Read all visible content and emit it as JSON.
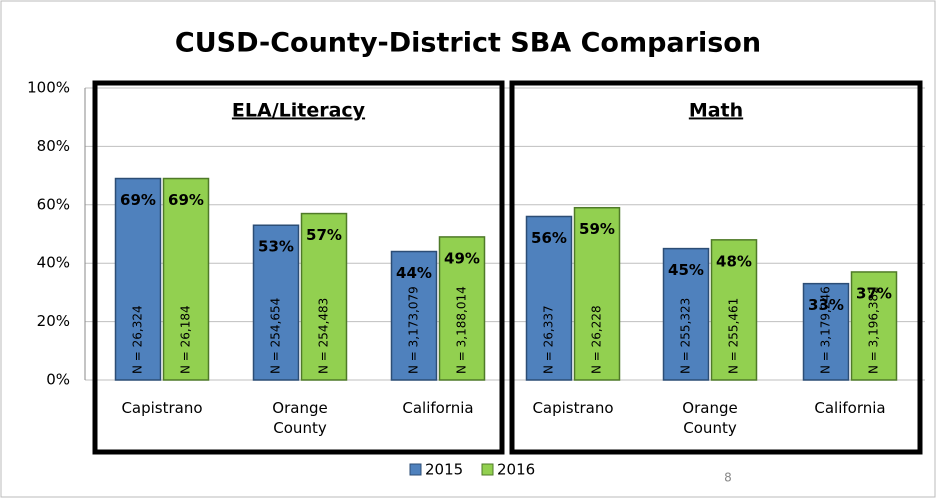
{
  "chart_data": {
    "type": "bar",
    "title": "CUSD-County-District SBA Comparison",
    "groups": [
      "ELA/Literacy",
      "Math"
    ],
    "categories": [
      "Capistrano",
      "Orange County",
      "California",
      "Capistrano",
      "Orange County",
      "California"
    ],
    "series": [
      {
        "name": "2015",
        "color": "#4f81bd",
        "values": [
          69,
          53,
          44,
          56,
          45,
          33
        ],
        "value_labels": [
          "69%",
          "53%",
          "44%",
          "56%",
          "45%",
          "33%"
        ],
        "n_labels": [
          "N = 26,324",
          "N = 254,654",
          "N = 3,173,079",
          "N = 26,337",
          "N = 255,323",
          "N = 3,179,246"
        ]
      },
      {
        "name": "2016",
        "color": "#92d050",
        "values": [
          69,
          57,
          49,
          59,
          48,
          37
        ],
        "value_labels": [
          "69%",
          "57%",
          "49%",
          "59%",
          "48%",
          "37%"
        ],
        "n_labels": [
          "N = 26,184",
          "N = 254,483",
          "N = 3,188,014",
          "N = 26,228",
          "N = 255,461",
          "N = 3,196,382"
        ]
      }
    ],
    "ylim": [
      0,
      100
    ],
    "yticks": [
      {
        "value": 0,
        "label": "0%"
      },
      {
        "value": 20,
        "label": "20%"
      },
      {
        "value": 40,
        "label": "40%"
      },
      {
        "value": 60,
        "label": "60%"
      },
      {
        "value": 80,
        "label": "80%"
      },
      {
        "value": 100,
        "label": "100%"
      }
    ],
    "grid": true,
    "legend": "bottom",
    "page_number": "8"
  }
}
